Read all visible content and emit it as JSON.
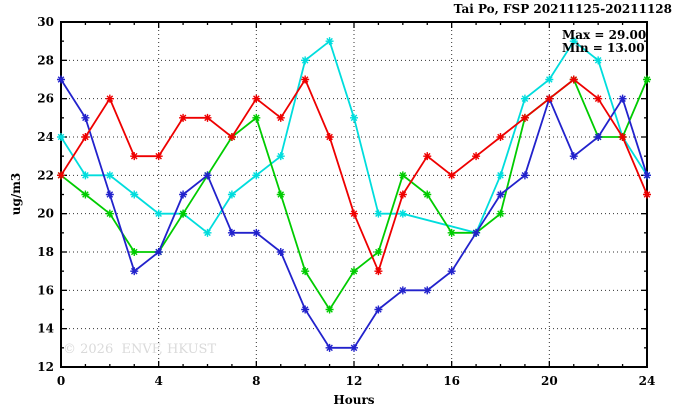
{
  "chart_data": {
    "type": "line",
    "title": "Tai Po, FSP 20211125-20211128",
    "xlabel": "Hours",
    "ylabel": "ug/m3",
    "xlim": [
      0,
      24
    ],
    "ylim": [
      12,
      30
    ],
    "x_ticks": [
      0,
      4,
      8,
      12,
      16,
      20,
      24
    ],
    "y_ticks": [
      12,
      14,
      16,
      18,
      20,
      22,
      24,
      26,
      28,
      30
    ],
    "x_gridlines": [
      4,
      8,
      12,
      16,
      20
    ],
    "y_gridlines": [
      14,
      16,
      18,
      20,
      22,
      24,
      26,
      28
    ],
    "grid": "dotted",
    "legend": "none",
    "marker": "asterisk",
    "hours": [
      0,
      1,
      2,
      3,
      4,
      5,
      6,
      7,
      8,
      9,
      10,
      11,
      12,
      13,
      14,
      15,
      16,
      17,
      18,
      19,
      20,
      21,
      22,
      23,
      24
    ],
    "series": [
      {
        "name": "cyan-line",
        "color": "#00dddd",
        "values": [
          24,
          22,
          22,
          21,
          20,
          20,
          19,
          21,
          22,
          23,
          28,
          29,
          25,
          20,
          20,
          null,
          null,
          19,
          22,
          26,
          27,
          29,
          28,
          24,
          22
        ]
      },
      {
        "name": "green-line",
        "color": "#00cc00",
        "values": [
          22,
          21,
          20,
          18,
          18,
          20,
          22,
          24,
          25,
          21,
          17,
          15,
          17,
          18,
          22,
          21,
          19,
          19,
          20,
          25,
          26,
          27,
          24,
          24,
          27
        ]
      },
      {
        "name": "blue-line",
        "color": "#2222cc",
        "values": [
          27,
          25,
          21,
          17,
          18,
          21,
          22,
          19,
          19,
          18,
          15,
          13,
          13,
          15,
          16,
          16,
          17,
          19,
          21,
          22,
          26,
          23,
          24,
          26,
          22
        ]
      },
      {
        "name": "red-line",
        "color": "#ee0000",
        "values": [
          22,
          24,
          26,
          23,
          23,
          25,
          25,
          24,
          26,
          25,
          27,
          24,
          20,
          17,
          21,
          23,
          22,
          23,
          24,
          25,
          26,
          27,
          26,
          24,
          21
        ]
      }
    ],
    "annotations": {
      "max_label": "Max = 29.00",
      "min_label": "Min = 13.00"
    },
    "watermark": "© 2026  ENVF, HKUST"
  }
}
